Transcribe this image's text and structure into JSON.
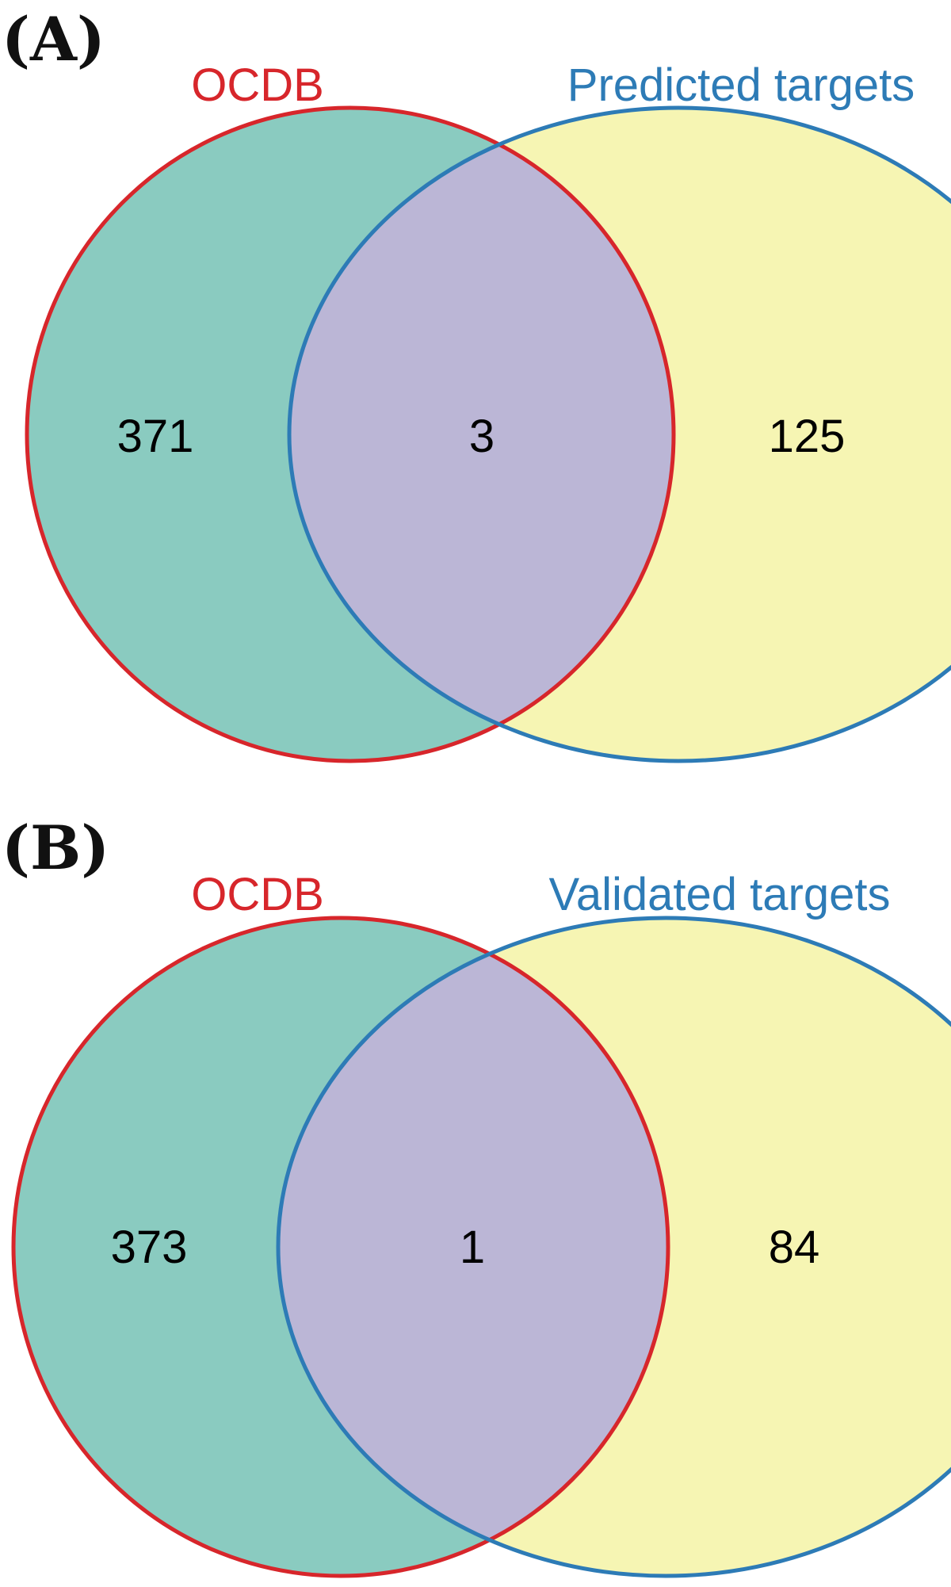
{
  "colors": {
    "left_fill": "#8ACBC0",
    "right_fill": "#F6F5B3",
    "overlap_fill": "#BBB6D6",
    "left_stroke": "#D7262B",
    "right_stroke": "#2D7BB6",
    "left_label": "#D7262B",
    "right_label": "#2D7BB6"
  },
  "panels": [
    {
      "panel_label": "(A)",
      "left_set": {
        "name": "OCDB",
        "only_count": "371"
      },
      "right_set": {
        "name": "Predicted targets",
        "only_count": "125"
      },
      "overlap_count": "3"
    },
    {
      "panel_label": "(B)",
      "left_set": {
        "name": "OCDB",
        "only_count": "373"
      },
      "right_set": {
        "name": "Validated targets",
        "only_count": "84"
      },
      "overlap_count": "1"
    }
  ]
}
